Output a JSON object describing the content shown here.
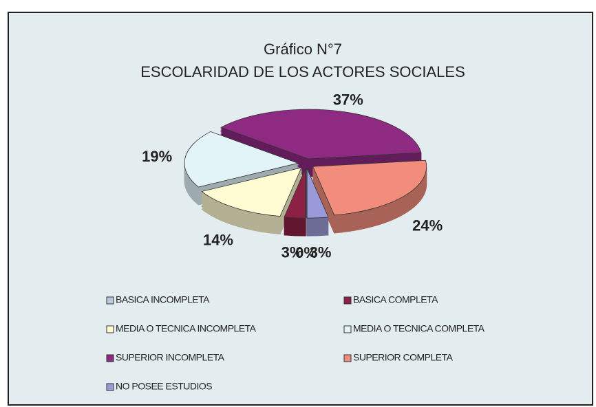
{
  "chart_data": {
    "type": "pie",
    "title": "Gráfico N°7",
    "subtitle": "ESCOLARIDAD DE LOS ACTORES SOCIALES",
    "categories": [
      "BASICA INCOMPLETA",
      "BASICA COMPLETA",
      "MEDIA O TECNICA INCOMPLETA",
      "MEDIA O TECNICA COMPLETA",
      "SUPERIOR INCOMPLETA",
      "SUPERIOR COMPLETA",
      "NO POSEE ESTUDIOS"
    ],
    "values": [
      0,
      3,
      14,
      19,
      37,
      24,
      3
    ],
    "value_labels": [
      "0%",
      "3%",
      "14%",
      "19%",
      "37%",
      "24%",
      "3%"
    ],
    "colors": [
      "#b9c9d9",
      "#8c2145",
      "#fffbd2",
      "#e2f4f8",
      "#8e2a82",
      "#f28c7c",
      "#9a9ad8"
    ]
  }
}
